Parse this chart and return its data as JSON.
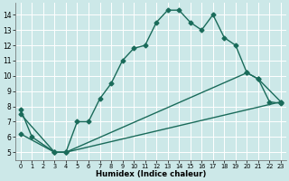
{
  "xlabel": "Humidex (Indice chaleur)",
  "xlim": [
    -0.5,
    23.5
  ],
  "ylim": [
    4.5,
    14.8
  ],
  "yticks": [
    5,
    6,
    7,
    8,
    9,
    10,
    11,
    12,
    13,
    14
  ],
  "xticks": [
    0,
    1,
    2,
    3,
    4,
    5,
    6,
    7,
    8,
    9,
    10,
    11,
    12,
    13,
    14,
    15,
    16,
    17,
    18,
    19,
    20,
    21,
    22,
    23
  ],
  "background_color": "#cce8e8",
  "grid_color": "#ffffff",
  "line_color": "#1a6b5a",
  "series": [
    {
      "x": [
        0,
        1,
        3,
        4,
        5,
        6,
        7,
        8,
        9,
        10,
        11,
        12,
        13,
        14,
        15,
        16,
        17,
        18,
        19,
        20,
        21,
        22,
        23
      ],
      "y": [
        7.8,
        6.0,
        5.0,
        5.0,
        7.0,
        7.0,
        8.5,
        9.5,
        11.0,
        11.8,
        12.0,
        13.5,
        14.3,
        14.3,
        13.5,
        13.0,
        14.0,
        12.5,
        12.0,
        10.2,
        9.8,
        8.3,
        8.2
      ],
      "marker": "D",
      "markersize": 2.5,
      "linewidth": 1.0,
      "linestyle": "-"
    },
    {
      "x": [
        0,
        3,
        4,
        20,
        21,
        23
      ],
      "y": [
        7.5,
        5.0,
        5.0,
        10.2,
        9.8,
        8.3
      ],
      "marker": "D",
      "markersize": 2.5,
      "linewidth": 1.0,
      "linestyle": "-"
    },
    {
      "x": [
        0,
        3,
        4,
        23
      ],
      "y": [
        6.2,
        5.0,
        5.0,
        8.3
      ],
      "marker": "D",
      "markersize": 2.5,
      "linewidth": 1.0,
      "linestyle": "-"
    }
  ]
}
